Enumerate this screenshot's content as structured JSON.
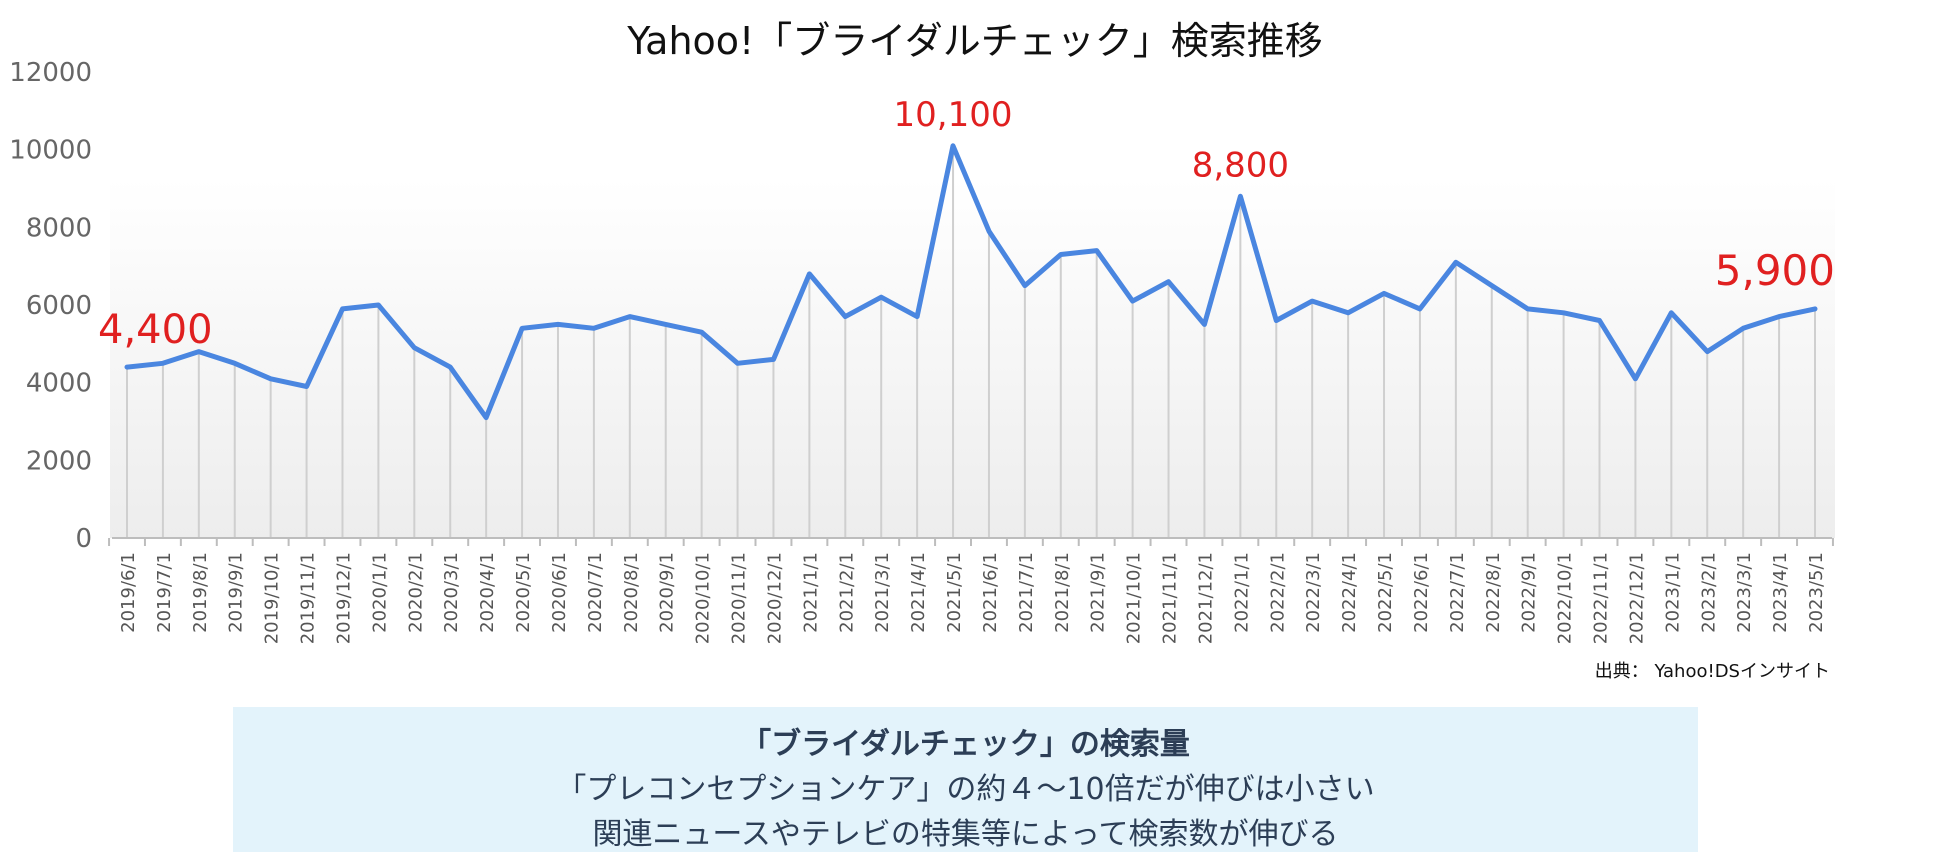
{
  "chart_data": {
    "type": "line",
    "title": "Yahoo!「ブライダルチェック」検索推移",
    "categories": [
      "2019/6/1",
      "2019/7/1",
      "2019/8/1",
      "2019/9/1",
      "2019/10/1",
      "2019/11/1",
      "2019/12/1",
      "2020/1/1",
      "2020/2/1",
      "2020/3/1",
      "2020/4/1",
      "2020/5/1",
      "2020/6/1",
      "2020/7/1",
      "2020/8/1",
      "2020/9/1",
      "2020/10/1",
      "2020/11/1",
      "2020/12/1",
      "2021/1/1",
      "2021/2/1",
      "2021/3/1",
      "2021/4/1",
      "2021/5/1",
      "2021/6/1",
      "2021/7/1",
      "2021/8/1",
      "2021/9/1",
      "2021/10/1",
      "2021/11/1",
      "2021/12/1",
      "2022/1/1",
      "2022/2/1",
      "2022/3/1",
      "2022/4/1",
      "2022/5/1",
      "2022/6/1",
      "2022/7/1",
      "2022/8/1",
      "2022/9/1",
      "2022/10/1",
      "2022/11/1",
      "2022/12/1",
      "2023/1/1",
      "2023/2/1",
      "2023/3/1",
      "2023/4/1",
      "2023/5/1"
    ],
    "values": [
      4400,
      4500,
      4800,
      4500,
      4100,
      3900,
      5900,
      6000,
      4900,
      4400,
      3100,
      5400,
      5500,
      5400,
      5700,
      5500,
      5300,
      4500,
      4600,
      6800,
      5700,
      6200,
      5700,
      10100,
      7900,
      6500,
      7300,
      7400,
      6100,
      6600,
      5500,
      8800,
      5600,
      6100,
      5800,
      6300,
      5900,
      7100,
      6500,
      5900,
      5800,
      5600,
      4100,
      5800,
      4800,
      5400,
      5700,
      5900
    ],
    "ylim": [
      0,
      12000
    ],
    "yticks": [
      "0",
      "2000",
      "4000",
      "6000",
      "8000",
      "10000",
      "12000"
    ],
    "line_color": "#4a86e0",
    "annotation_color": "#e02020",
    "annotations": [
      {
        "index": 0,
        "text": "4,400"
      },
      {
        "index": 23,
        "text": "10,100"
      },
      {
        "index": 31,
        "text": "8,800"
      },
      {
        "index": 47,
        "text": "5,900"
      }
    ],
    "xlabel": "",
    "ylabel": ""
  },
  "source_note": "出典： Yahoo!DSインサイト",
  "summary": {
    "line1": "「ブライダルチェック」の検索量",
    "line2": "「プレコンセプションケア」の約４〜10倍だが伸びは小さい",
    "line3": "関連ニュースやテレビの特集等によって検索数が伸びる"
  }
}
